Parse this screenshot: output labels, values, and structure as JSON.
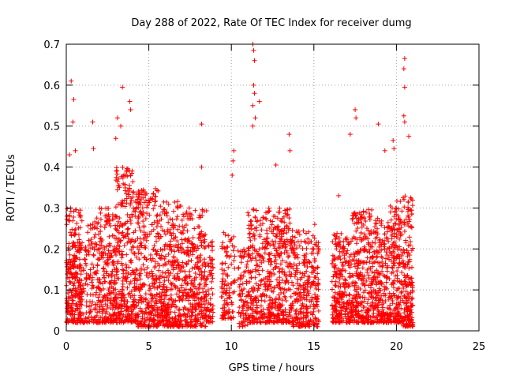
{
  "chart_data": {
    "type": "scatter",
    "title": "Day 288 of 2022, Rate Of TEC Index for receiver dumg",
    "xlabel": "GPS time / hours",
    "ylabel": "ROTI / TECUs",
    "xlim": [
      0,
      25
    ],
    "ylim": [
      0,
      0.7
    ],
    "xticks": [
      0,
      5,
      10,
      15,
      20,
      25
    ],
    "yticks": [
      0,
      0.1,
      0.2,
      0.3,
      0.4,
      0.5,
      0.6,
      0.7
    ],
    "xtick_labels": [
      "0",
      "5",
      "10",
      "15",
      "20",
      "25"
    ],
    "ytick_labels": [
      "0",
      "0.1",
      "0.2",
      "0.3",
      "0.4",
      "0.5",
      "0.6",
      "0.7"
    ],
    "grid": true,
    "marker": "+",
    "color": "#ff0000",
    "points_note_outliers": [
      [
        0.3,
        0.61
      ],
      [
        0.45,
        0.565
      ],
      [
        0.4,
        0.51
      ],
      [
        0.2,
        0.43
      ],
      [
        0.55,
        0.44
      ],
      [
        1.6,
        0.51
      ],
      [
        1.65,
        0.445
      ],
      [
        3.4,
        0.595
      ],
      [
        3.1,
        0.52
      ],
      [
        3.3,
        0.5
      ],
      [
        3.85,
        0.56
      ],
      [
        3.9,
        0.54
      ],
      [
        3.0,
        0.47
      ],
      [
        8.2,
        0.505
      ],
      [
        8.2,
        0.4
      ],
      [
        10.15,
        0.44
      ],
      [
        10.1,
        0.415
      ],
      [
        10.05,
        0.38
      ],
      [
        11.3,
        0.7
      ],
      [
        11.35,
        0.685
      ],
      [
        11.4,
        0.66
      ],
      [
        11.35,
        0.6
      ],
      [
        11.4,
        0.58
      ],
      [
        11.3,
        0.55
      ],
      [
        11.45,
        0.52
      ],
      [
        11.3,
        0.5
      ],
      [
        11.7,
        0.56
      ],
      [
        13.5,
        0.48
      ],
      [
        13.55,
        0.44
      ],
      [
        12.7,
        0.405
      ],
      [
        17.5,
        0.54
      ],
      [
        17.55,
        0.52
      ],
      [
        18.9,
        0.505
      ],
      [
        17.2,
        0.48
      ],
      [
        20.5,
        0.665
      ],
      [
        20.45,
        0.64
      ],
      [
        20.5,
        0.595
      ],
      [
        20.45,
        0.525
      ],
      [
        20.5,
        0.51
      ],
      [
        20.75,
        0.475
      ],
      [
        19.8,
        0.465
      ],
      [
        19.85,
        0.445
      ],
      [
        19.3,
        0.44
      ],
      [
        16.5,
        0.33
      ],
      [
        15.05,
        0.26
      ]
    ],
    "clusters": [
      {
        "x0": 0.0,
        "x1": 0.9,
        "ymin": 0.02,
        "ymax": 0.3,
        "n": 260
      },
      {
        "x0": 0.9,
        "x1": 2.0,
        "ymin": 0.02,
        "ymax": 0.28,
        "n": 160
      },
      {
        "x0": 2.0,
        "x1": 3.0,
        "ymin": 0.02,
        "ymax": 0.3,
        "n": 220
      },
      {
        "x0": 3.0,
        "x1": 4.2,
        "ymin": 0.02,
        "ymax": 0.4,
        "n": 320
      },
      {
        "x0": 4.2,
        "x1": 5.6,
        "ymin": 0.01,
        "ymax": 0.35,
        "n": 320
      },
      {
        "x0": 5.6,
        "x1": 7.0,
        "ymin": 0.01,
        "ymax": 0.32,
        "n": 330
      },
      {
        "x0": 7.0,
        "x1": 8.5,
        "ymin": 0.01,
        "ymax": 0.3,
        "n": 330
      },
      {
        "x0": 8.5,
        "x1": 8.9,
        "ymin": 0.02,
        "ymax": 0.22,
        "n": 60
      },
      {
        "x0": 9.4,
        "x1": 10.2,
        "ymin": 0.03,
        "ymax": 0.24,
        "n": 110
      },
      {
        "x0": 10.4,
        "x1": 11.0,
        "ymin": 0.01,
        "ymax": 0.2,
        "n": 80
      },
      {
        "x0": 11.0,
        "x1": 12.3,
        "ymin": 0.02,
        "ymax": 0.3,
        "n": 250
      },
      {
        "x0": 12.3,
        "x1": 13.6,
        "ymin": 0.02,
        "ymax": 0.3,
        "n": 280
      },
      {
        "x0": 13.6,
        "x1": 15.3,
        "ymin": 0.01,
        "ymax": 0.25,
        "n": 310
      },
      {
        "x0": 16.1,
        "x1": 17.3,
        "ymin": 0.02,
        "ymax": 0.24,
        "n": 260
      },
      {
        "x0": 17.3,
        "x1": 18.5,
        "ymin": 0.02,
        "ymax": 0.3,
        "n": 280
      },
      {
        "x0": 18.5,
        "x1": 19.6,
        "ymin": 0.02,
        "ymax": 0.28,
        "n": 240
      },
      {
        "x0": 19.6,
        "x1": 20.4,
        "ymin": 0.02,
        "ymax": 0.32,
        "n": 200
      },
      {
        "x0": 20.4,
        "x1": 21.0,
        "ymin": 0.01,
        "ymax": 0.33,
        "n": 180
      }
    ]
  }
}
